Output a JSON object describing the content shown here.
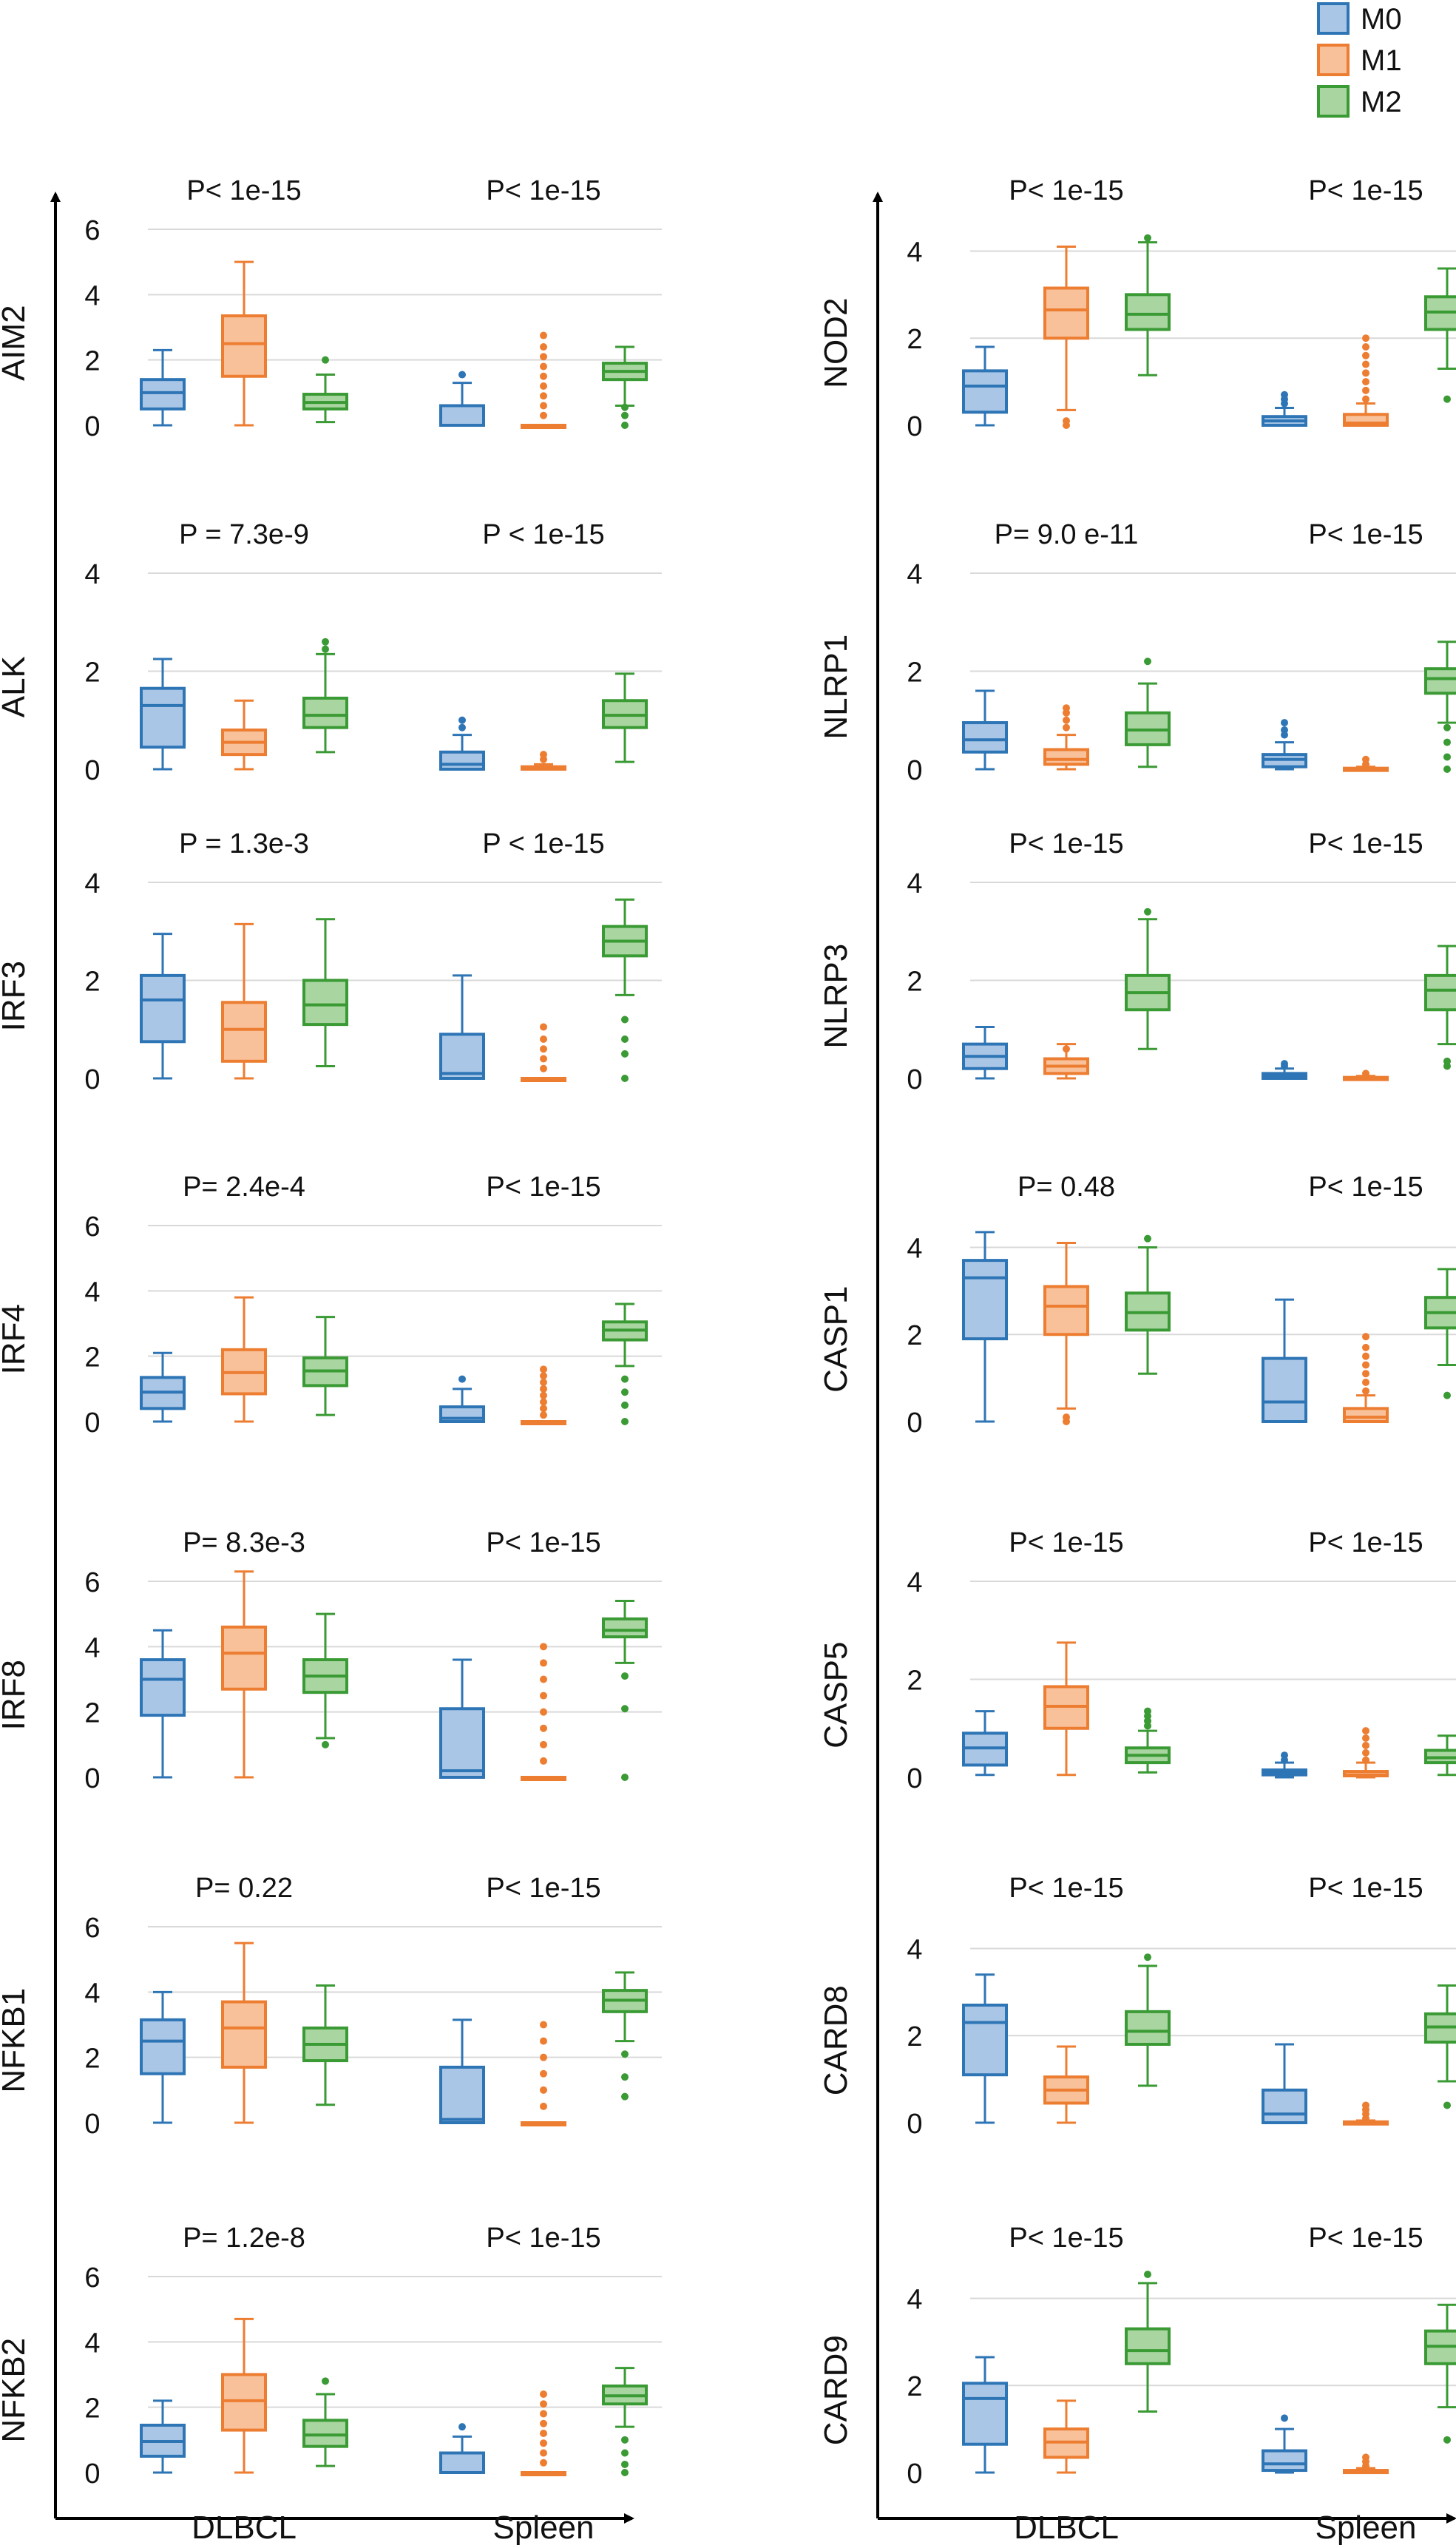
{
  "legend": {
    "items": [
      {
        "label": "M0",
        "fill": "#a9c6e6",
        "stroke": "#2e75b6"
      },
      {
        "label": "M1",
        "fill": "#f8c19a",
        "stroke": "#ed7d31"
      },
      {
        "label": "M2",
        "fill": "#a8d5a0",
        "stroke": "#3a9a34"
      }
    ]
  },
  "columns": [
    {
      "groups": [
        "DLBCL",
        "Spleen"
      ]
    },
    {
      "groups": [
        "DLBCL",
        "Spleen"
      ]
    }
  ],
  "chart_data": [
    {
      "type": "box",
      "gene": "AIM2",
      "ylim": [
        0,
        6
      ],
      "yticks": [
        0,
        2,
        4,
        6
      ],
      "p_values": [
        "P< 1e-15",
        "P< 1e-15"
      ],
      "boxes": [
        [
          0,
          0.5,
          1.0,
          1.4,
          2.3
        ],
        [
          0,
          1.5,
          2.5,
          3.35,
          5.0
        ],
        [
          0.1,
          0.5,
          0.7,
          0.95,
          1.55
        ],
        [
          0,
          0,
          0,
          0.6,
          1.3
        ],
        [
          0,
          0,
          0,
          0,
          0
        ],
        [
          0.6,
          1.4,
          1.65,
          1.9,
          2.4
        ]
      ],
      "outliers": [
        [],
        [],
        [
          2.0
        ],
        [
          1.55
        ],
        [
          0.3,
          0.6,
          0.9,
          1.2,
          1.5,
          1.8,
          2.1,
          2.4,
          2.75
        ],
        [
          0.3,
          0,
          0.55
        ]
      ]
    },
    {
      "type": "box",
      "gene": "ALK",
      "ylim": [
        0,
        4
      ],
      "yticks": [
        0,
        2,
        4
      ],
      "p_values": [
        "P = 7.3e-9",
        "P < 1e-15"
      ],
      "boxes": [
        [
          0,
          0.45,
          1.3,
          1.65,
          2.25
        ],
        [
          0,
          0.3,
          0.55,
          0.8,
          1.4
        ],
        [
          0.35,
          0.85,
          1.1,
          1.45,
          2.35
        ],
        [
          0,
          0,
          0.1,
          0.35,
          0.7
        ],
        [
          0,
          0,
          0,
          0.05,
          0.1
        ],
        [
          0.15,
          0.85,
          1.1,
          1.4,
          1.95
        ]
      ],
      "outliers": [
        [],
        [],
        [
          2.45,
          2.6
        ],
        [
          0.85,
          1.0
        ],
        [
          0.2,
          0.3
        ],
        []
      ]
    },
    {
      "type": "box",
      "gene": "IRF3",
      "ylim": [
        0,
        4
      ],
      "yticks": [
        0,
        2,
        4
      ],
      "p_values": [
        "P = 1.3e-3",
        "P < 1e-15"
      ],
      "boxes": [
        [
          0,
          0.75,
          1.6,
          2.1,
          2.95
        ],
        [
          0,
          0.35,
          1.0,
          1.55,
          3.15
        ],
        [
          0.25,
          1.1,
          1.5,
          2.0,
          3.25
        ],
        [
          0,
          0,
          0.1,
          0.9,
          2.1
        ],
        [
          0,
          0,
          0,
          0,
          0
        ],
        [
          1.7,
          2.5,
          2.8,
          3.1,
          3.65
        ]
      ],
      "outliers": [
        [],
        [],
        [],
        [],
        [
          0.2,
          0.4,
          0.6,
          0.8,
          1.05
        ],
        [
          1.2,
          0.8,
          0.5,
          0
        ]
      ]
    },
    {
      "type": "box",
      "gene": "IRF4",
      "ylim": [
        0,
        6
      ],
      "yticks": [
        0,
        2,
        4,
        6
      ],
      "p_values": [
        "P= 2.4e-4",
        "P< 1e-15"
      ],
      "boxes": [
        [
          0,
          0.4,
          0.9,
          1.35,
          2.1
        ],
        [
          0,
          0.85,
          1.5,
          2.2,
          3.8
        ],
        [
          0.2,
          1.1,
          1.55,
          1.95,
          3.2
        ],
        [
          0,
          0,
          0.1,
          0.45,
          1.0
        ],
        [
          0,
          0,
          0,
          0,
          0
        ],
        [
          1.7,
          2.5,
          2.8,
          3.05,
          3.6
        ]
      ],
      "outliers": [
        [],
        [],
        [],
        [
          1.3
        ],
        [
          0.2,
          0.4,
          0.6,
          0.8,
          1.0,
          1.2,
          1.4,
          1.6
        ],
        [
          1.3,
          0.9,
          0.5,
          0
        ]
      ]
    },
    {
      "type": "box",
      "gene": "IRF8",
      "ylim": [
        0,
        6
      ],
      "yticks": [
        0,
        2,
        4,
        6
      ],
      "p_values": [
        "P= 8.3e-3",
        "P< 1e-15"
      ],
      "boxes": [
        [
          0,
          1.9,
          3.0,
          3.6,
          4.5
        ],
        [
          0,
          2.7,
          3.8,
          4.6,
          6.3
        ],
        [
          1.2,
          2.6,
          3.1,
          3.6,
          5.0
        ],
        [
          0,
          0,
          0.2,
          2.1,
          3.6
        ],
        [
          0,
          0,
          0,
          0,
          0
        ],
        [
          3.5,
          4.3,
          4.5,
          4.85,
          5.4
        ]
      ],
      "outliers": [
        [],
        [],
        [
          1.0
        ],
        [],
        [
          0.5,
          1.0,
          1.5,
          2.0,
          2.5,
          3.0,
          3.5,
          4.0
        ],
        [
          3.1,
          2.1,
          0
        ]
      ]
    },
    {
      "type": "box",
      "gene": "NFKB1",
      "ylim": [
        0,
        6
      ],
      "yticks": [
        0,
        2,
        4,
        6
      ],
      "p_values": [
        "P= 0.22",
        "P< 1e-15"
      ],
      "boxes": [
        [
          0,
          1.5,
          2.5,
          3.15,
          4.0
        ],
        [
          0,
          1.7,
          2.9,
          3.7,
          5.5
        ],
        [
          0.55,
          1.9,
          2.4,
          2.9,
          4.2
        ],
        [
          0,
          0,
          0.1,
          1.7,
          3.15
        ],
        [
          0,
          0,
          0,
          0,
          0
        ],
        [
          2.5,
          3.4,
          3.75,
          4.05,
          4.6
        ]
      ],
      "outliers": [
        [],
        [],
        [],
        [],
        [
          0.5,
          1.0,
          1.5,
          2.0,
          2.5,
          3.0
        ],
        [
          2.1,
          1.4,
          0.8
        ]
      ]
    },
    {
      "type": "box",
      "gene": "NFKB2",
      "ylim": [
        0,
        6
      ],
      "yticks": [
        0,
        2,
        4,
        6
      ],
      "p_values": [
        "P= 1.2e-8",
        "P< 1e-15"
      ],
      "boxes": [
        [
          0,
          0.5,
          0.95,
          1.45,
          2.2
        ],
        [
          0,
          1.3,
          2.2,
          3.0,
          4.7
        ],
        [
          0.2,
          0.8,
          1.15,
          1.6,
          2.4
        ],
        [
          0,
          0,
          0,
          0.6,
          1.1
        ],
        [
          0,
          0,
          0,
          0,
          0
        ],
        [
          1.4,
          2.1,
          2.35,
          2.65,
          3.2
        ]
      ],
      "outliers": [
        [],
        [],
        [
          2.8
        ],
        [
          1.4
        ],
        [
          0.3,
          0.6,
          0.9,
          1.2,
          1.5,
          1.8,
          2.1,
          2.4
        ],
        [
          1.0,
          0.6,
          0.25,
          0
        ]
      ]
    },
    {
      "type": "box",
      "gene": "NOD2",
      "ylim": [
        0,
        4.5
      ],
      "yticks": [
        0,
        2,
        4
      ],
      "p_values": [
        "P< 1e-15",
        "P< 1e-15"
      ],
      "boxes": [
        [
          0,
          0.3,
          0.9,
          1.25,
          1.8
        ],
        [
          0.35,
          2.0,
          2.65,
          3.15,
          4.1
        ],
        [
          1.15,
          2.2,
          2.55,
          3.0,
          4.2
        ],
        [
          0,
          0,
          0.1,
          0.2,
          0.4
        ],
        [
          0,
          0,
          0.05,
          0.25,
          0.5
        ],
        [
          1.3,
          2.2,
          2.6,
          2.95,
          3.6
        ]
      ],
      "outliers": [
        [],
        [
          0,
          0.1
        ],
        [
          4.3
        ],
        [
          0.5,
          0.6,
          0.7
        ],
        [
          0.6,
          0.8,
          1.0,
          1.2,
          1.4,
          1.6,
          1.8,
          2.0
        ],
        [
          0.6
        ]
      ]
    },
    {
      "type": "box",
      "gene": "NLRP1",
      "ylim": [
        0,
        4
      ],
      "yticks": [
        0,
        2,
        4
      ],
      "p_values": [
        "P= 9.0 e-11",
        "P< 1e-15"
      ],
      "boxes": [
        [
          0,
          0.35,
          0.6,
          0.95,
          1.6
        ],
        [
          0,
          0.1,
          0.2,
          0.4,
          0.7
        ],
        [
          0.05,
          0.5,
          0.8,
          1.15,
          1.75
        ],
        [
          0,
          0.05,
          0.2,
          0.3,
          0.55
        ],
        [
          0,
          0,
          0,
          0.02,
          0.05
        ],
        [
          0.95,
          1.55,
          1.85,
          2.05,
          2.6
        ]
      ],
      "outliers": [
        [],
        [
          0.85,
          1.0,
          1.15,
          1.25
        ],
        [
          2.2
        ],
        [
          0.7,
          0.8,
          0.95
        ],
        [
          0.1,
          0.2
        ],
        [
          0.85,
          0.55,
          0.25,
          0
        ]
      ]
    },
    {
      "type": "box",
      "gene": "NLRP3",
      "ylim": [
        0,
        4
      ],
      "yticks": [
        0,
        2,
        4
      ],
      "p_values": [
        "P< 1e-15",
        "P< 1e-15"
      ],
      "boxes": [
        [
          0,
          0.2,
          0.45,
          0.7,
          1.05
        ],
        [
          0,
          0.1,
          0.25,
          0.4,
          0.7
        ],
        [
          0.6,
          1.4,
          1.75,
          2.1,
          3.25
        ],
        [
          0,
          0,
          0.05,
          0.1,
          0.2
        ],
        [
          0,
          0,
          0,
          0.02,
          0.05
        ],
        [
          0.7,
          1.4,
          1.8,
          2.1,
          2.7
        ]
      ],
      "outliers": [
        [],
        [
          0.6
        ],
        [
          3.4
        ],
        [
          0.25,
          0.3
        ],
        [
          0.1
        ],
        [
          0.35,
          0.25
        ]
      ]
    },
    {
      "type": "box",
      "gene": "CASP1",
      "ylim": [
        0,
        4.5
      ],
      "yticks": [
        0,
        2,
        4
      ],
      "p_values": [
        "P= 0.48",
        "P< 1e-15"
      ],
      "boxes": [
        [
          0,
          1.9,
          3.3,
          3.7,
          4.35
        ],
        [
          0.3,
          2.0,
          2.65,
          3.1,
          4.1
        ],
        [
          1.1,
          2.1,
          2.5,
          2.95,
          4.0
        ],
        [
          0,
          0,
          0.45,
          1.45,
          2.8
        ],
        [
          0,
          0,
          0.1,
          0.3,
          0.6
        ],
        [
          1.3,
          2.15,
          2.5,
          2.85,
          3.5
        ]
      ],
      "outliers": [
        [],
        [
          0,
          0.1
        ],
        [
          4.2
        ],
        [],
        [
          0.7,
          0.9,
          1.1,
          1.3,
          1.5,
          1.7,
          1.95
        ],
        [
          0.6
        ]
      ]
    },
    {
      "type": "box",
      "gene": "CASP5",
      "ylim": [
        0,
        4
      ],
      "yticks": [
        0,
        2,
        4
      ],
      "p_values": [
        "P< 1e-15",
        "P< 1e-15"
      ],
      "boxes": [
        [
          0.05,
          0.25,
          0.6,
          0.9,
          1.35
        ],
        [
          0.05,
          1.0,
          1.45,
          1.85,
          2.75
        ],
        [
          0.1,
          0.3,
          0.45,
          0.6,
          0.95
        ],
        [
          0,
          0.05,
          0.1,
          0.15,
          0.3
        ],
        [
          0,
          0.03,
          0.05,
          0.12,
          0.3
        ],
        [
          0.05,
          0.3,
          0.4,
          0.55,
          0.85
        ]
      ],
      "outliers": [
        [],
        [],
        [
          1.05,
          1.15,
          1.25,
          1.35
        ],
        [
          0.35,
          0.45
        ],
        [
          0.35,
          0.5,
          0.65,
          0.8,
          0.95
        ],
        []
      ]
    },
    {
      "type": "box",
      "gene": "CARD8",
      "ylim": [
        0,
        4.5
      ],
      "yticks": [
        0,
        2,
        4
      ],
      "p_values": [
        "P< 1e-15",
        "P< 1e-15"
      ],
      "boxes": [
        [
          0,
          1.1,
          2.3,
          2.7,
          3.4
        ],
        [
          0,
          0.45,
          0.75,
          1.05,
          1.75
        ],
        [
          0.85,
          1.8,
          2.1,
          2.55,
          3.6
        ],
        [
          0,
          0,
          0.2,
          0.75,
          1.8
        ],
        [
          0,
          0,
          0,
          0.02,
          0.05
        ],
        [
          0.95,
          1.85,
          2.2,
          2.5,
          3.15
        ]
      ],
      "outliers": [
        [],
        [],
        [
          3.8
        ],
        [],
        [
          0.1,
          0.2,
          0.3,
          0.4
        ],
        [
          0.4
        ]
      ]
    },
    {
      "type": "box",
      "gene": "CARD9",
      "ylim": [
        0,
        4.5
      ],
      "yticks": [
        0,
        2,
        4
      ],
      "p_values": [
        "P< 1e-15",
        "P< 1e-15"
      ],
      "boxes": [
        [
          0,
          0.65,
          1.7,
          2.05,
          2.65
        ],
        [
          0,
          0.35,
          0.7,
          1.0,
          1.65
        ],
        [
          1.4,
          2.5,
          2.8,
          3.3,
          4.35
        ],
        [
          0,
          0.05,
          0.2,
          0.5,
          1.0
        ],
        [
          0,
          0,
          0.02,
          0.05,
          0.1
        ],
        [
          1.5,
          2.5,
          2.9,
          3.25,
          3.85
        ]
      ],
      "outliers": [
        [],
        [],
        [
          4.55
        ],
        [
          1.25
        ],
        [
          0.15,
          0.25,
          0.35
        ],
        [
          0.75
        ]
      ]
    }
  ]
}
